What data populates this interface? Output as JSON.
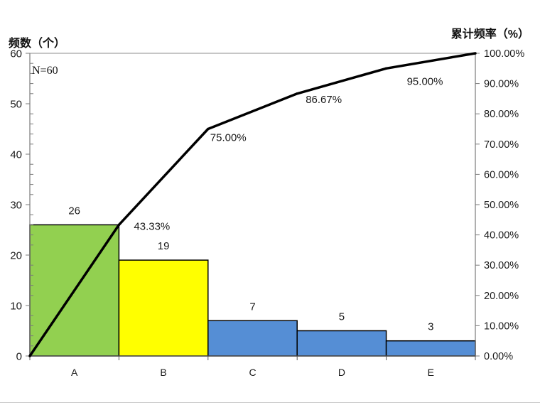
{
  "chart_data": {
    "type": "bar",
    "categories": [
      "A",
      "B",
      "C",
      "D",
      "E"
    ],
    "values": [
      26,
      19,
      7,
      5,
      3
    ],
    "bar_colors": [
      "#92D050",
      "#FFFF00",
      "#558ED5",
      "#558ED5",
      "#558ED5"
    ],
    "ylabel": "频数（个）",
    "ylim": [
      0,
      60
    ],
    "yticks": [
      0,
      10,
      20,
      30,
      40,
      50,
      60
    ],
    "y2label": "累计频率（%）",
    "y2lim": [
      0,
      100
    ],
    "y2ticks": [
      "0.00%",
      "10.00%",
      "20.00%",
      "30.00%",
      "40.00%",
      "50.00%",
      "60.00%",
      "70.00%",
      "80.00%",
      "90.00%",
      "100.00%"
    ],
    "cumulative_line": {
      "type": "line",
      "values": [
        0,
        43.33,
        75.0,
        86.67,
        95.0,
        100.0
      ],
      "point_labels": [
        null,
        "43.33%",
        "75.00%",
        "86.67%",
        "95.00%",
        null
      ],
      "color": "#000000"
    },
    "annotation": "N=60",
    "grid": false,
    "legend": "none"
  }
}
